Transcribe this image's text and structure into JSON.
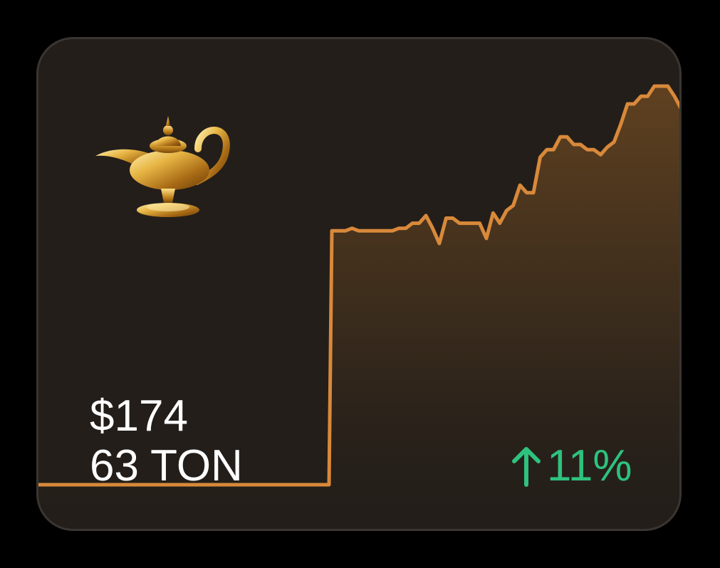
{
  "card": {
    "price_usd": "$174",
    "price_ton": "63 TON",
    "change": {
      "direction": "up",
      "icon": "arrow-up-icon",
      "value": "11%",
      "color": "#2ec27e"
    },
    "image": {
      "icon": "magic-lamp-icon"
    }
  },
  "colors": {
    "background": "#231e1a",
    "line": "#d8893a",
    "text": "#ffffff",
    "positive": "#2ec27e"
  },
  "chart_data": {
    "type": "area",
    "y": [
      0,
      0,
      0,
      0,
      0,
      0,
      0,
      0,
      0,
      0,
      0,
      0,
      0,
      0,
      0,
      0,
      0,
      0,
      0,
      0,
      0,
      0,
      0,
      100,
      100,
      100,
      101,
      100,
      100,
      100,
      100,
      100,
      100,
      101,
      101,
      103,
      103,
      106,
      101,
      95,
      105,
      105,
      103,
      103,
      103,
      103,
      97,
      107,
      103,
      108,
      110,
      118,
      115,
      115,
      129,
      132,
      132,
      137,
      137,
      134,
      134,
      132,
      132,
      130,
      133,
      135,
      142,
      150,
      150,
      153,
      153,
      157,
      157,
      157,
      153,
      148,
      139
    ]
  }
}
